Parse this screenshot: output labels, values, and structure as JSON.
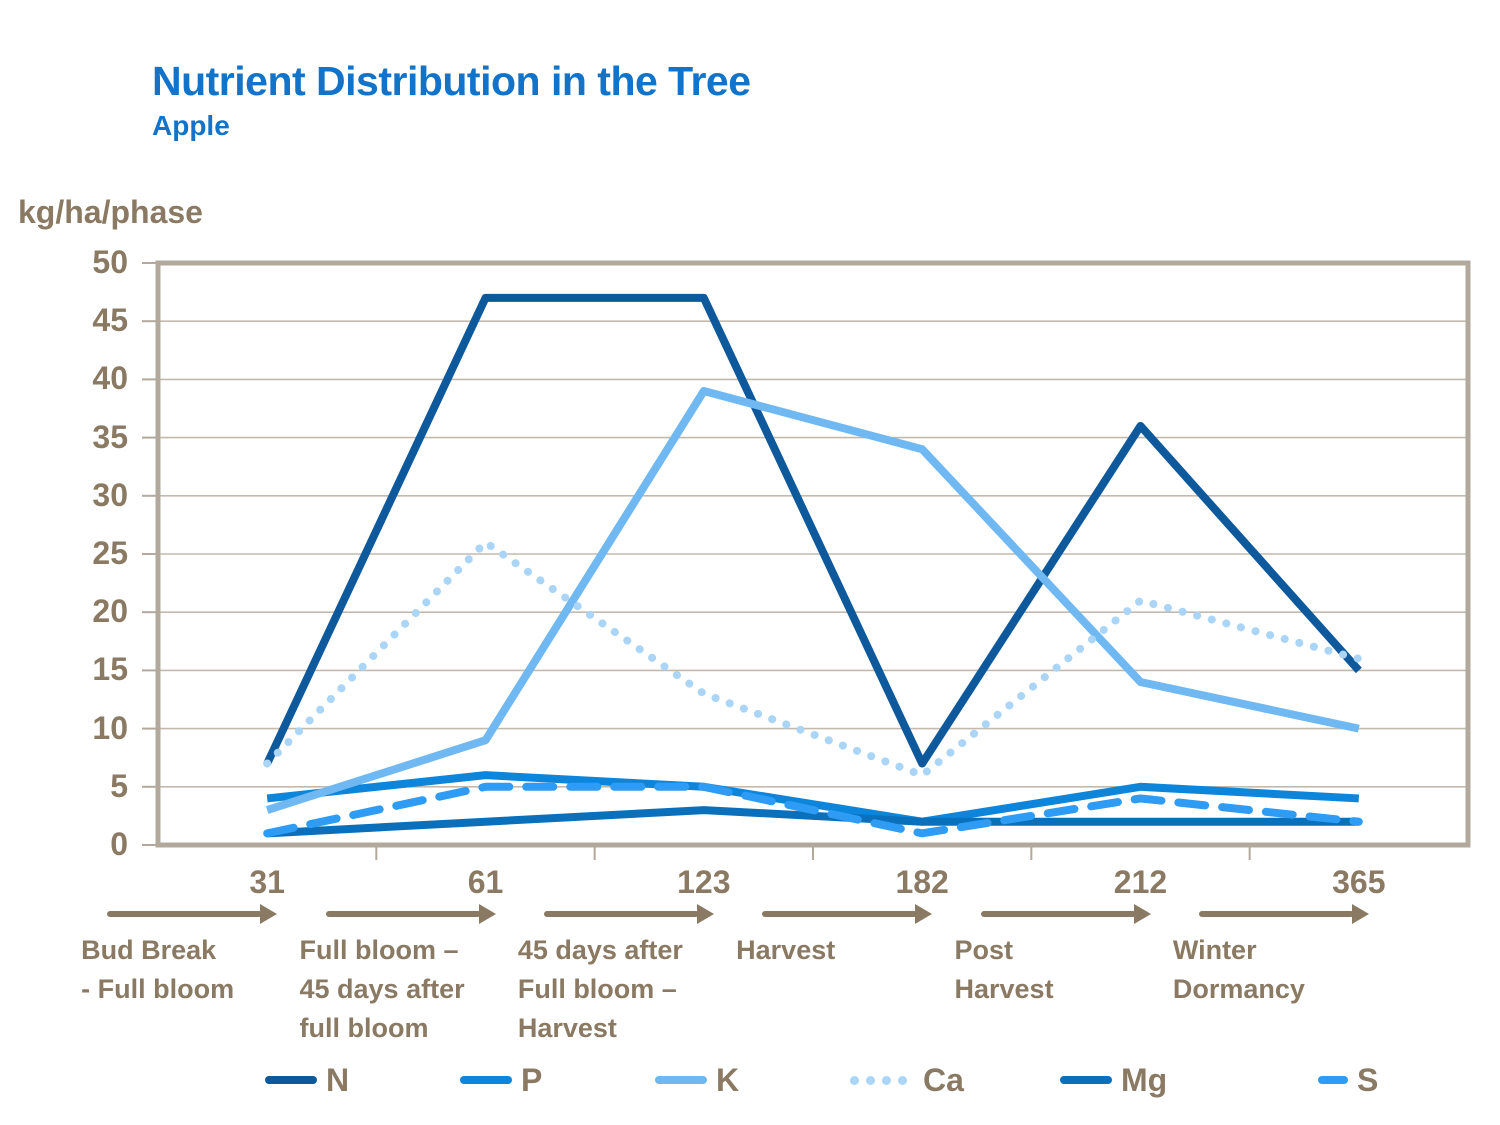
{
  "title": "Nutrient Distribution in the Tree",
  "subtitle": "Apple",
  "y_axis_label": "kg/ha/phase",
  "colors": {
    "title_blue": "#1173C9",
    "axis_text": "#8A7A63",
    "frame": "#B2A89C",
    "gridline": "#C3BAAD",
    "series_N": "#0E589C",
    "series_P": "#0D85DB",
    "series_K": "#70B8F2",
    "series_Ca": "#ABD5F7",
    "series_Mg": "#0A70BC",
    "series_S": "#2E9BF4"
  },
  "chart_data": {
    "type": "line",
    "title": "Nutrient Distribution in the Tree",
    "subtitle": "Apple",
    "ylabel": "kg/ha/phase",
    "ylim": [
      0,
      50
    ],
    "y_tick_step": 5,
    "y_tick_labels": [
      "0",
      "5",
      "10",
      "15",
      "20",
      "25",
      "30",
      "35",
      "40",
      "45",
      "50"
    ],
    "grid": "horizontal",
    "legend_position": "bottom",
    "x_tick_labels": [
      "31",
      "61",
      "123",
      "182",
      "212",
      "365"
    ],
    "phase_labels": [
      "Bud Break\n- Full bloom",
      "Full bloom –\n45 days after\nfull bloom",
      "45 days after\nFull bloom –\nHarvest",
      "Harvest",
      "Post\nHarvest",
      "Winter\nDormancy"
    ],
    "series": [
      {
        "name": "N",
        "values": [
          7,
          47,
          47,
          7,
          36,
          15
        ],
        "color": "#0E589C",
        "style": "solid"
      },
      {
        "name": "P",
        "values": [
          4,
          6,
          5,
          2,
          5,
          4
        ],
        "color": "#0D85DB",
        "style": "solid"
      },
      {
        "name": "K",
        "values": [
          3,
          9,
          39,
          34,
          14,
          10
        ],
        "color": "#70B8F2",
        "style": "solid"
      },
      {
        "name": "Ca",
        "values": [
          7,
          26,
          13,
          6,
          21,
          16
        ],
        "color": "#ABD5F7",
        "style": "dotted"
      },
      {
        "name": "Mg",
        "values": [
          1,
          2,
          3,
          2,
          2,
          2
        ],
        "color": "#0A70BC",
        "style": "solid"
      },
      {
        "name": "S",
        "values": [
          1,
          5,
          5,
          1,
          4,
          2
        ],
        "color": "#2E9BF4",
        "style": "dashed"
      }
    ]
  }
}
